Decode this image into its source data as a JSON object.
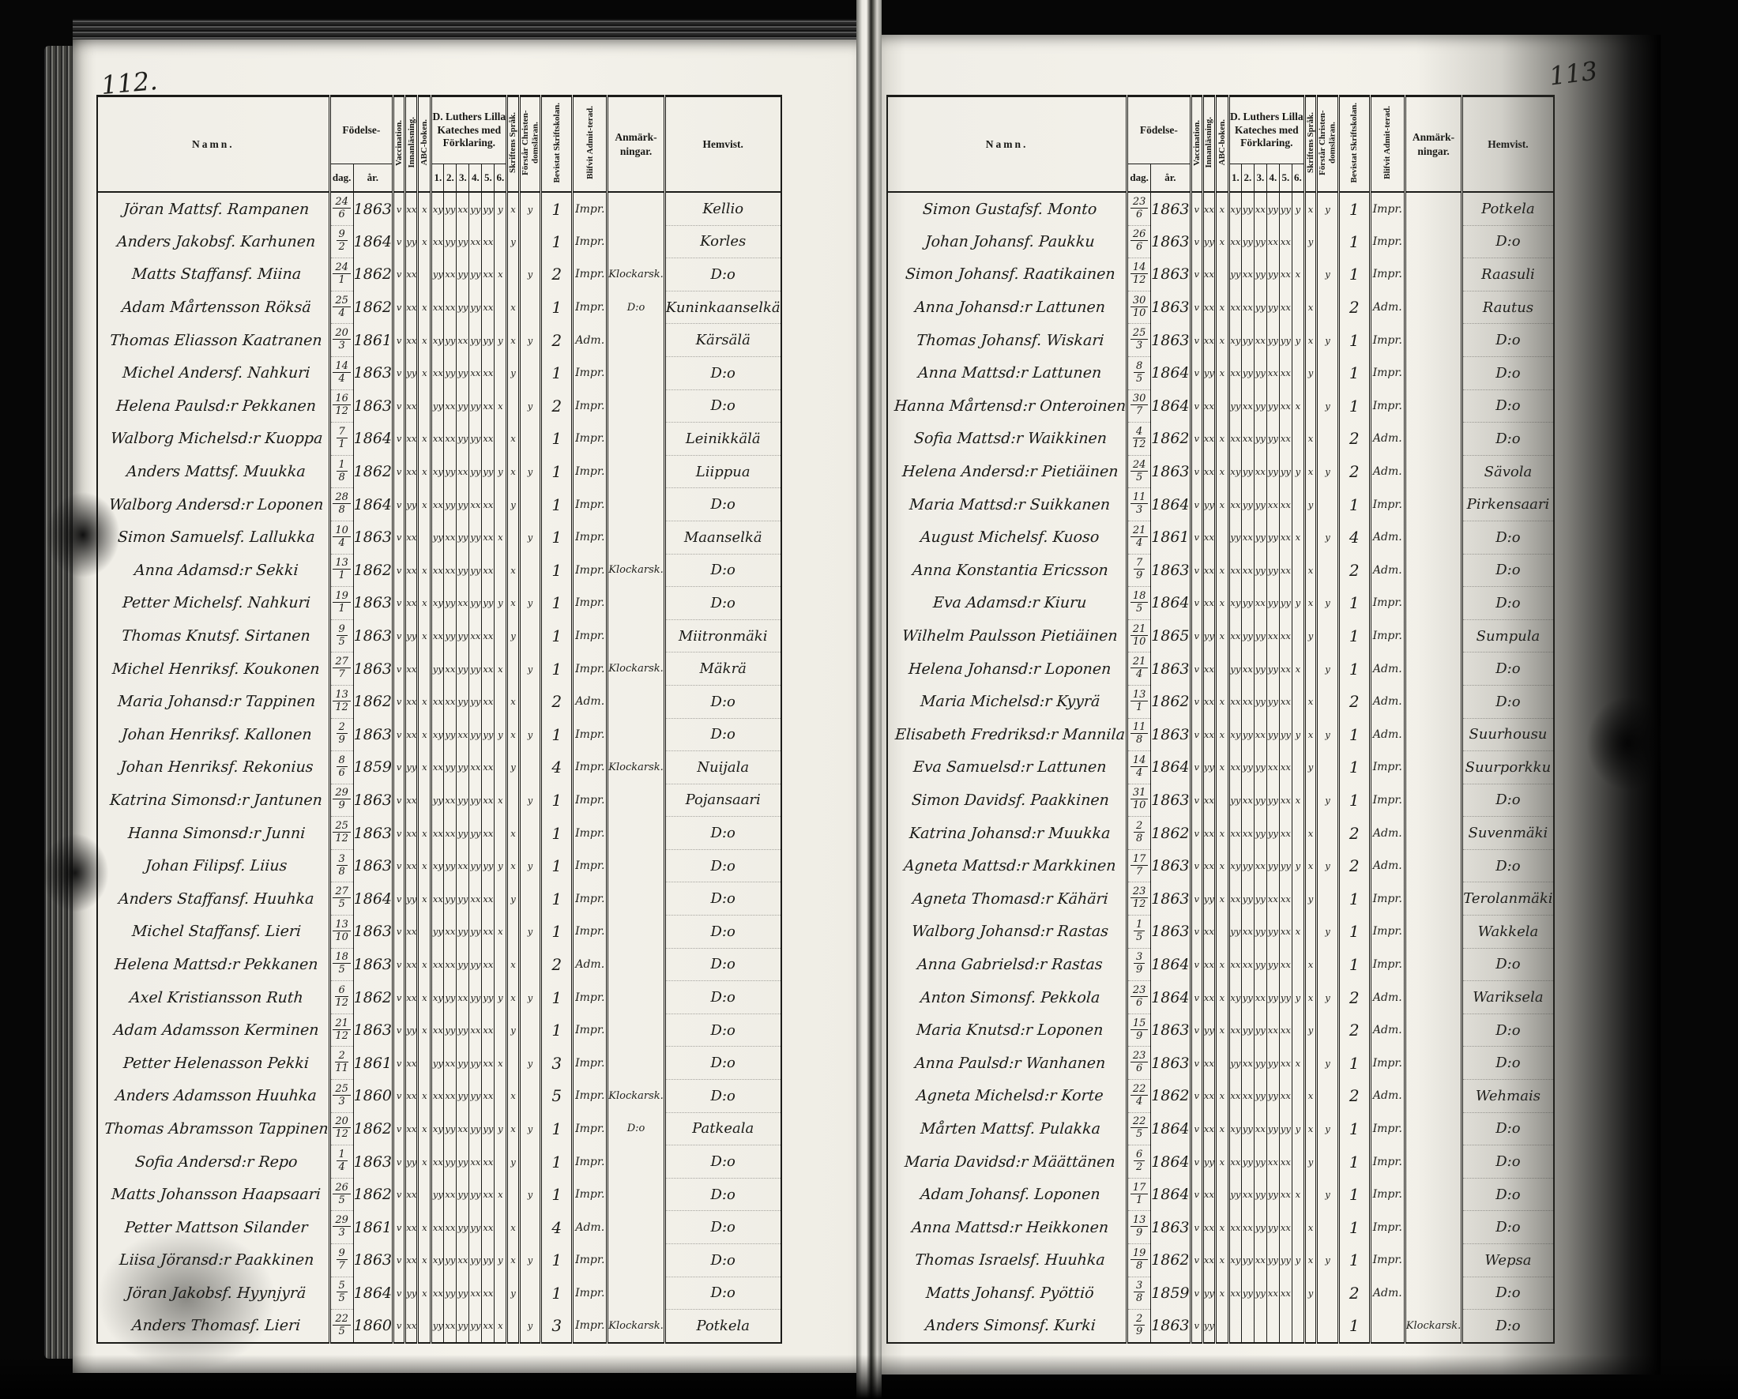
{
  "headers": {
    "name": "Namn.",
    "birth": "Födelse-",
    "day": "dag.",
    "year": "år.",
    "vaccination": "Vaccination.",
    "reading": "Innanläsning.",
    "abc": "ABC-boken.",
    "catechism": "D. Luthers Lilla Kateches med Förklaring.",
    "k1": "1.",
    "k2": "2.",
    "k3": "3.",
    "k4": "4.",
    "k5": "5.",
    "k6": "6.",
    "language": "Skriftens Språk.",
    "understands": "Förstår Christen-domsläran.",
    "school": "Bevistat Skriftskolan.",
    "admitted": "Blifvit Admit-terad.",
    "remarks": "Anmärk-ningar.",
    "residence": "Hemvist."
  },
  "marks_patterns": [
    "v xx x xy yy xx yy yy y x y",
    "v yy x xx yy yy xx xx . y .",
    "v xx . yy xx yy yy xx x . y",
    "v xx x xx xx yy yy xx . x ."
  ],
  "left_page": {
    "page_number": "112.",
    "rows": [
      {
        "n": "Jöran Mattsf. Rampanen",
        "d": "24/6",
        "y": "1863",
        "s": "1",
        "a": "Impr.",
        "r": "",
        "h": "Kellio"
      },
      {
        "n": "Anders Jakobsf. Karhunen",
        "d": "9/2",
        "y": "1864",
        "s": "1",
        "a": "Impr.",
        "r": "",
        "h": "Korles"
      },
      {
        "n": "Matts Staffansf. Miina",
        "d": "24/1",
        "y": "1862",
        "s": "2",
        "a": "Impr.",
        "r": "Klockarsk.",
        "h": "D:o"
      },
      {
        "n": "Adam Mårtensson Röksä",
        "d": "25/4",
        "y": "1862",
        "s": "1",
        "a": "Impr.",
        "r": "D:o",
        "h": "Kuninkaanselkä"
      },
      {
        "n": "Thomas Eliasson Kaatranen",
        "d": "20/3",
        "y": "1861",
        "s": "2",
        "a": "Adm.",
        "r": "",
        "h": "Kärsälä"
      },
      {
        "n": "Michel Andersf. Nahkuri",
        "d": "14/4",
        "y": "1863",
        "s": "1",
        "a": "Impr.",
        "r": "",
        "h": "D:o"
      },
      {
        "n": "Helena Paulsd:r Pekkanen",
        "d": "16/12",
        "y": "1863",
        "s": "2",
        "a": "Impr.",
        "r": "",
        "h": "D:o"
      },
      {
        "n": "Walborg Michelsd:r Kuoppa",
        "d": "7/1",
        "y": "1864",
        "s": "1",
        "a": "Impr.",
        "r": "",
        "h": "Leinikkälä"
      },
      {
        "n": "Anders Mattsf. Muukka",
        "d": "1/8",
        "y": "1862",
        "s": "1",
        "a": "Impr.",
        "r": "",
        "h": "Liippua"
      },
      {
        "n": "Walborg Andersd:r Loponen",
        "d": "28/8",
        "y": "1864",
        "s": "1",
        "a": "Impr.",
        "r": "",
        "h": "D:o"
      },
      {
        "n": "Simon Samuelsf. Lallukka",
        "d": "10/4",
        "y": "1863",
        "s": "1",
        "a": "Impr.",
        "r": "",
        "h": "Maanselkä"
      },
      {
        "n": "Anna Adamsd:r Sekki",
        "d": "13/1",
        "y": "1862",
        "s": "1",
        "a": "Impr.",
        "r": "Klockarsk.",
        "h": "D:o"
      },
      {
        "n": "Petter Michelsf. Nahkuri",
        "d": "19/1",
        "y": "1863",
        "s": "1",
        "a": "Impr.",
        "r": "",
        "h": "D:o"
      },
      {
        "n": "Thomas Knutsf. Sirtanen",
        "d": "9/5",
        "y": "1863",
        "s": "1",
        "a": "Impr.",
        "r": "",
        "h": "Miitronmäki"
      },
      {
        "n": "Michel Henriksf. Koukonen",
        "d": "27/7",
        "y": "1863",
        "s": "1",
        "a": "Impr.",
        "r": "Klockarsk.",
        "h": "Mäkrä"
      },
      {
        "n": "Maria Johansd:r Tappinen",
        "d": "13/12",
        "y": "1862",
        "s": "2",
        "a": "Adm.",
        "r": "",
        "h": "D:o"
      },
      {
        "n": "Johan Henriksf. Kallonen",
        "d": "2/9",
        "y": "1863",
        "s": "1",
        "a": "Impr.",
        "r": "",
        "h": "D:o"
      },
      {
        "n": "Johan Henriksf. Rekonius",
        "d": "8/6",
        "y": "1859",
        "s": "4",
        "a": "Impr.",
        "r": "Klockarsk.",
        "h": "Nuijala"
      },
      {
        "n": "Katrina Simonsd:r Jantunen",
        "d": "29/9",
        "y": "1863",
        "s": "1",
        "a": "Impr.",
        "r": "",
        "h": "Pojansaari"
      },
      {
        "n": "Hanna Simonsd:r Junni",
        "d": "25/12",
        "y": "1863",
        "s": "1",
        "a": "Impr.",
        "r": "",
        "h": "D:o"
      },
      {
        "n": "Johan Filipsf. Liius",
        "d": "3/8",
        "y": "1863",
        "s": "1",
        "a": "Impr.",
        "r": "",
        "h": "D:o"
      },
      {
        "n": "Anders Staffansf. Huuhka",
        "d": "27/5",
        "y": "1864",
        "s": "1",
        "a": "Impr.",
        "r": "",
        "h": "D:o"
      },
      {
        "n": "Michel Staffansf. Lieri",
        "d": "13/10",
        "y": "1863",
        "s": "1",
        "a": "Impr.",
        "r": "",
        "h": "D:o"
      },
      {
        "n": "Helena Mattsd:r Pekkanen",
        "d": "18/5",
        "y": "1863",
        "s": "2",
        "a": "Adm.",
        "r": "",
        "h": "D:o"
      },
      {
        "n": "Axel Kristiansson Ruth",
        "d": "6/12",
        "y": "1862",
        "s": "1",
        "a": "Impr.",
        "r": "",
        "h": "D:o"
      },
      {
        "n": "Adam Adamsson Kerminen",
        "d": "21/12",
        "y": "1863",
        "s": "1",
        "a": "Impr.",
        "r": "",
        "h": "D:o"
      },
      {
        "n": "Petter Helenasson Pekki",
        "d": "2/11",
        "y": "1861",
        "s": "3",
        "a": "Impr.",
        "r": "",
        "h": "D:o"
      },
      {
        "n": "Anders Adamsson Huuhka",
        "d": "25/3",
        "y": "1860",
        "s": "5",
        "a": "Impr.",
        "r": "Klockarsk.",
        "h": "D:o"
      },
      {
        "n": "Thomas Abramsson Tappinen",
        "d": "20/12",
        "y": "1862",
        "s": "1",
        "a": "Impr.",
        "r": "D:o",
        "h": "Patkeala"
      },
      {
        "n": "Sofia Andersd:r Repo",
        "d": "1/4",
        "y": "1863",
        "s": "1",
        "a": "Impr.",
        "r": "",
        "h": "D:o"
      },
      {
        "n": "Matts Johansson Haapsaari",
        "d": "26/5",
        "y": "1862",
        "s": "1",
        "a": "Impr.",
        "r": "",
        "h": "D:o"
      },
      {
        "n": "Petter Mattson Silander",
        "d": "29/3",
        "y": "1861",
        "s": "4",
        "a": "Adm.",
        "r": "",
        "h": "D:o"
      },
      {
        "n": "Liisa Jöransd:r Paakkinen",
        "d": "9/7",
        "y": "1863",
        "s": "1",
        "a": "Impr.",
        "r": "",
        "h": "D:o"
      },
      {
        "n": "Jöran Jakobsf. Hyynjyrä",
        "d": "5/5",
        "y": "1864",
        "s": "1",
        "a": "Impr.",
        "r": "",
        "h": "D:o"
      },
      {
        "n": "Anders Thomasf. Lieri",
        "d": "22/5",
        "y": "1860",
        "s": "3",
        "a": "Impr.",
        "r": "Klockarsk.",
        "h": "Potkela"
      }
    ]
  },
  "right_page": {
    "page_number": "113",
    "rows": [
      {
        "n": "Simon Gustafsf. Monto",
        "d": "23/6",
        "y": "1863",
        "s": "1",
        "a": "Impr.",
        "r": "",
        "h": "Potkela"
      },
      {
        "n": "Johan Johansf. Paukku",
        "d": "26/6",
        "y": "1863",
        "s": "1",
        "a": "Impr.",
        "r": "",
        "h": "D:o"
      },
      {
        "n": "Simon Johansf. Raatikainen",
        "d": "14/12",
        "y": "1863",
        "s": "1",
        "a": "Impr.",
        "r": "",
        "h": "Raasuli"
      },
      {
        "n": "Anna Johansd:r Lattunen",
        "d": "30/10",
        "y": "1863",
        "s": "2",
        "a": "Adm.",
        "r": "",
        "h": "Rautus"
      },
      {
        "n": "Thomas Johansf. Wiskari",
        "d": "25/3",
        "y": "1863",
        "s": "1",
        "a": "Impr.",
        "r": "",
        "h": "D:o"
      },
      {
        "n": "Anna Mattsd:r Lattunen",
        "d": "8/5",
        "y": "1864",
        "s": "1",
        "a": "Impr.",
        "r": "",
        "h": "D:o"
      },
      {
        "n": "Hanna Mårtensd:r Onteroinen",
        "d": "30/7",
        "y": "1864",
        "s": "1",
        "a": "Impr.",
        "r": "",
        "h": "D:o"
      },
      {
        "n": "Sofia Mattsd:r Waikkinen",
        "d": "4/12",
        "y": "1862",
        "s": "2",
        "a": "Adm.",
        "r": "",
        "h": "D:o"
      },
      {
        "n": "Helena Andersd:r Pietiäinen",
        "d": "24/5",
        "y": "1863",
        "s": "2",
        "a": "Adm.",
        "r": "",
        "h": "Sävola"
      },
      {
        "n": "Maria Mattsd:r Suikkanen",
        "d": "11/3",
        "y": "1864",
        "s": "1",
        "a": "Impr.",
        "r": "",
        "h": "Pirkensaari"
      },
      {
        "n": "August Michelsf. Kuoso",
        "d": "21/4",
        "y": "1861",
        "s": "4",
        "a": "Adm.",
        "r": "",
        "h": "D:o"
      },
      {
        "n": "Anna Konstantia Ericsson",
        "d": "7/9",
        "y": "1863",
        "s": "2",
        "a": "Adm.",
        "r": "",
        "h": "D:o"
      },
      {
        "n": "Eva Adamsd:r Kiuru",
        "d": "18/5",
        "y": "1864",
        "s": "1",
        "a": "Impr.",
        "r": "",
        "h": "D:o"
      },
      {
        "n": "Wilhelm Paulsson Pietiäinen",
        "d": "21/10",
        "y": "1865",
        "s": "1",
        "a": "Impr.",
        "r": "",
        "h": "Sumpula"
      },
      {
        "n": "Helena Johansd:r Loponen",
        "d": "21/4",
        "y": "1863",
        "s": "1",
        "a": "Adm.",
        "r": "",
        "h": "D:o"
      },
      {
        "n": "Maria Michelsd:r Kyyrä",
        "d": "13/1",
        "y": "1862",
        "s": "2",
        "a": "Adm.",
        "r": "",
        "h": "D:o"
      },
      {
        "n": "Elisabeth Fredriksd:r Mannila",
        "d": "11/8",
        "y": "1863",
        "s": "1",
        "a": "Adm.",
        "r": "",
        "h": "Suurhousu"
      },
      {
        "n": "Eva Samuelsd:r Lattunen",
        "d": "14/4",
        "y": "1864",
        "s": "1",
        "a": "Impr.",
        "r": "",
        "h": "Suurporkku"
      },
      {
        "n": "Simon Davidsf. Paakkinen",
        "d": "31/10",
        "y": "1863",
        "s": "1",
        "a": "Impr.",
        "r": "",
        "h": "D:o"
      },
      {
        "n": "Katrina Johansd:r Muukka",
        "d": "2/8",
        "y": "1862",
        "s": "2",
        "a": "Adm.",
        "r": "",
        "h": "Suvenmäki"
      },
      {
        "n": "Agneta Mattsd:r Markkinen",
        "d": "17/7",
        "y": "1863",
        "s": "2",
        "a": "Adm.",
        "r": "",
        "h": "D:o"
      },
      {
        "n": "Agneta Thomasd:r Kähäri",
        "d": "23/12",
        "y": "1863",
        "s": "1",
        "a": "Impr.",
        "r": "",
        "h": "Terolanmäki"
      },
      {
        "n": "Walborg Johansd:r Rastas",
        "d": "1/5",
        "y": "1863",
        "s": "1",
        "a": "Impr.",
        "r": "",
        "h": "Wakkela"
      },
      {
        "n": "Anna Gabrielsd:r Rastas",
        "d": "3/9",
        "y": "1864",
        "s": "1",
        "a": "Impr.",
        "r": "",
        "h": "D:o"
      },
      {
        "n": "Anton Simonsf. Pekkola",
        "d": "23/6",
        "y": "1864",
        "s": "2",
        "a": "Adm.",
        "r": "",
        "h": "Wariksela"
      },
      {
        "n": "Maria Knutsd:r Loponen",
        "d": "15/9",
        "y": "1863",
        "s": "2",
        "a": "Adm.",
        "r": "",
        "h": "D:o"
      },
      {
        "n": "Anna Paulsd:r Wanhanen",
        "d": "23/6",
        "y": "1863",
        "s": "1",
        "a": "Impr.",
        "r": "",
        "h": "D:o"
      },
      {
        "n": "Agneta Michelsd:r Korte",
        "d": "22/4",
        "y": "1862",
        "s": "2",
        "a": "Adm.",
        "r": "",
        "h": "Wehmais"
      },
      {
        "n": "Mårten Mattsf. Pulakka",
        "d": "22/5",
        "y": "1864",
        "s": "1",
        "a": "Impr.",
        "r": "",
        "h": "D:o"
      },
      {
        "n": "Maria Davidsd:r Määttänen",
        "d": "6/2",
        "y": "1864",
        "s": "1",
        "a": "Impr.",
        "r": "",
        "h": "D:o"
      },
      {
        "n": "Adam Johansf. Loponen",
        "d": "17/1",
        "y": "1864",
        "s": "1",
        "a": "Impr.",
        "r": "",
        "h": "D:o"
      },
      {
        "n": "Anna Mattsd:r Heikkonen",
        "d": "13/9",
        "y": "1863",
        "s": "1",
        "a": "Impr.",
        "r": "",
        "h": "D:o"
      },
      {
        "n": "Thomas Israelsf. Huuhka",
        "d": "19/8",
        "y": "1862",
        "s": "1",
        "a": "Impr.",
        "r": "",
        "h": "Wepsa"
      },
      {
        "n": "Matts Johansf. Pyöttiö",
        "d": "3/8",
        "y": "1859",
        "s": "2",
        "a": "Adm.",
        "r": "",
        "h": "D:o"
      },
      {
        "n": "Anders Simonsf. Kurki",
        "d": "2/9",
        "y": "1863",
        "s": "1",
        "a": "",
        "r": "Klockarsk.",
        "h": "D:o",
        "m": "v yy . . . . . . . . ."
      }
    ]
  }
}
